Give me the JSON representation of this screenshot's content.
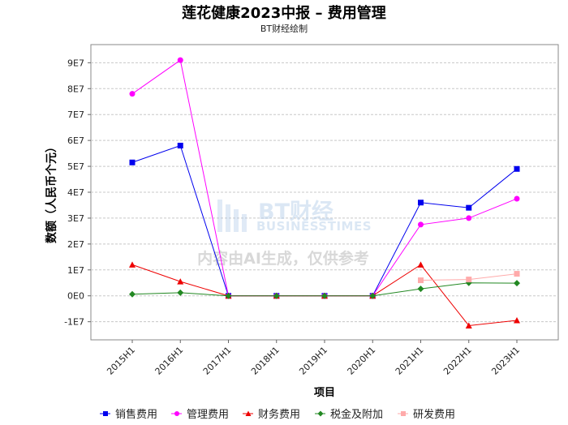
{
  "header": {
    "title": "莲花健康2023中报 – 费用管理",
    "subtitle": "BT财经绘制"
  },
  "watermark": {
    "logo": "BT财经",
    "brand": "BUSINESSTIMES",
    "notice": "内容由AI生成，仅供参考"
  },
  "chart_data": {
    "type": "line",
    "title": "莲花健康2023中报 – 费用管理",
    "subtitle": "BT财经绘制",
    "xlabel": "项目",
    "ylabel": "数额（人民币个元）",
    "categories": [
      "2015H1",
      "2016H1",
      "2017H1",
      "2018H1",
      "2019H1",
      "2020H1",
      "2021H1",
      "2022H1",
      "2023H1"
    ],
    "yticks": [
      "-1E7",
      "0E0",
      "1E7",
      "2E7",
      "3E7",
      "4E7",
      "5E7",
      "6E7",
      "7E7",
      "8E7",
      "9E7"
    ],
    "ylim": [
      -17000000,
      97000000
    ],
    "grid": true,
    "legend_position": "bottom",
    "series": [
      {
        "name": "销售费用",
        "color": "#0000ee",
        "marker": "square",
        "values": [
          51500000,
          58000000,
          0,
          0,
          0,
          0,
          36000000,
          34000000,
          49000000
        ]
      },
      {
        "name": "管理费用",
        "color": "#ff00ff",
        "marker": "circle",
        "values": [
          78000000,
          91000000,
          0,
          0,
          0,
          0,
          27500000,
          30000000,
          37500000
        ]
      },
      {
        "name": "财务费用",
        "color": "#ee0000",
        "marker": "triangle",
        "values": [
          12000000,
          5500000,
          0,
          0,
          0,
          0,
          12000000,
          -11500000,
          -9500000
        ]
      },
      {
        "name": "税金及附加",
        "color": "#228822",
        "marker": "diamond",
        "values": [
          600000,
          1200000,
          0,
          0,
          0,
          0,
          2700000,
          5000000,
          4900000
        ]
      },
      {
        "name": "研发费用",
        "color": "#ffaaaa",
        "marker": "square",
        "values": [
          null,
          null,
          null,
          null,
          null,
          null,
          6000000,
          6300000,
          8500000
        ]
      }
    ]
  }
}
